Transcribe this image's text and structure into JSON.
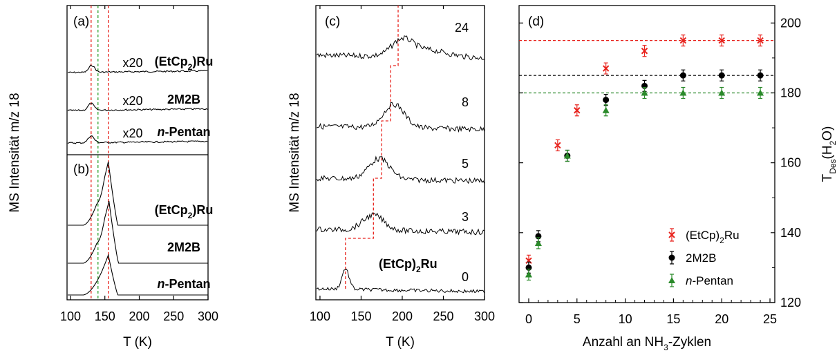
{
  "panel_a_traces": [
    {
      "label": "(EtCp2)Ru",
      "sub": "2",
      "pre": "(EtCp",
      "post": ")Ru",
      "mult": "x20",
      "italic_prefix": "",
      "peak_T": 131,
      "base": 0.0
    },
    {
      "label": "2M2B",
      "pre": "2M2B",
      "sub": "",
      "post": "",
      "mult": "x20",
      "italic_prefix": "",
      "peak_T": 130,
      "base": 0.0
    },
    {
      "label": "n-Pentan",
      "pre": "-Pentan",
      "sub": "",
      "post": "",
      "mult": "x20",
      "italic_prefix": "n",
      "peak_T": 130,
      "base": 0.0
    }
  ],
  "panel_b_traces": [
    {
      "pre": "(EtCp",
      "sub": "2",
      "post": ")Ru",
      "italic_prefix": "",
      "peak_T": 155
    },
    {
      "pre": "2M2B",
      "sub": "",
      "post": "",
      "italic_prefix": "",
      "peak_T": 156
    },
    {
      "pre": "-Pentan",
      "sub": "",
      "post": "",
      "italic_prefix": "n",
      "peak_T": 155
    }
  ],
  "panel_c_traces": [
    {
      "cycles": "24",
      "peak_T": 200
    },
    {
      "cycles": "8",
      "peak_T": 190
    },
    {
      "cycles": "5",
      "peak_T": 172
    },
    {
      "cycles": "3",
      "peak_T": 165
    },
    {
      "cycles": "0",
      "peak_T": 131
    }
  ],
  "panel_c_label": {
    "pre": "(EtCp)",
    "sub": "2",
    "post": "Ru"
  },
  "labels": {
    "panel_a": "(a)",
    "panel_b": "(b)",
    "panel_c": "(c)",
    "panel_d": "(d)",
    "ylabel_ab": "MS Intensität m/z 18",
    "ylabel_c": "MS Intensität m/z 18",
    "xlabel_ab": "T (K)",
    "xlabel_c": "T (K)",
    "xlabel_d_pre": "Anzahl an NH",
    "xlabel_d_sub": "3",
    "xlabel_d_post": "-Zyklen",
    "ylabel_d_pre": "T",
    "ylabel_d_sub": "Des",
    "ylabel_d_mid": "(H",
    "ylabel_d_sub2": "2",
    "ylabel_d_post": "O)"
  },
  "chart_data": [
    {
      "type": "line",
      "panel": "a+b",
      "xlabel": "T (K)",
      "ylabel": "MS Intensität m/z 18",
      "xlim": [
        95,
        300
      ],
      "xticks": [
        100,
        150,
        200,
        250,
        300
      ],
      "reference_lines_T": [
        {
          "T": 130,
          "color": "#e8231d"
        },
        {
          "T": 140,
          "color": "#2ca02c"
        },
        {
          "T": 155,
          "color": "#e8231d"
        }
      ]
    },
    {
      "type": "line",
      "panel": "c",
      "xlabel": "T (K)",
      "ylabel": "MS Intensität m/z 18",
      "xlim": [
        95,
        300
      ],
      "xticks": [
        100,
        150,
        200,
        250,
        300
      ],
      "step_line_T": [
        131,
        165,
        175,
        186,
        195
      ]
    },
    {
      "type": "scatter",
      "panel": "d",
      "xlabel": "Anzahl an NH3-Zyklen",
      "ylabel": "TDes(H2O)",
      "xlim": [
        -1,
        25.5
      ],
      "ylim": [
        120,
        205
      ],
      "xticks": [
        0,
        5,
        10,
        15,
        20,
        25
      ],
      "yticks": [
        120,
        140,
        160,
        180,
        200
      ],
      "legend_position": "bottom-right",
      "series": [
        {
          "name": "(EtCp)2Ru",
          "legend_pre": "(EtCp)",
          "legend_sub": "2",
          "legend_post": "Ru",
          "legend_italic": "",
          "color": "#e8231d",
          "marker": "x",
          "x": [
            0,
            3,
            5,
            8,
            12,
            16,
            20,
            24
          ],
          "y": [
            132,
            165,
            175,
            187,
            192,
            195,
            195,
            195
          ],
          "plateau": 195
        },
        {
          "name": "2M2B",
          "legend_pre": "2M2B",
          "legend_sub": "",
          "legend_post": "",
          "legend_italic": "",
          "color": "#000000",
          "marker": "circle",
          "x": [
            0,
            1,
            4,
            8,
            12,
            16,
            20,
            24
          ],
          "y": [
            130,
            139,
            162,
            178,
            182,
            185,
            185,
            185
          ],
          "plateau": 185
        },
        {
          "name": "n-Pentan",
          "legend_pre": "-Pentan",
          "legend_sub": "",
          "legend_post": "",
          "legend_italic": "n",
          "color": "#2a8a2a",
          "marker": "triangle",
          "x": [
            0,
            1,
            4,
            8,
            12,
            16,
            20,
            24
          ],
          "y": [
            128,
            137,
            162,
            175,
            180,
            180,
            180,
            180
          ],
          "plateau": 180
        }
      ]
    }
  ]
}
